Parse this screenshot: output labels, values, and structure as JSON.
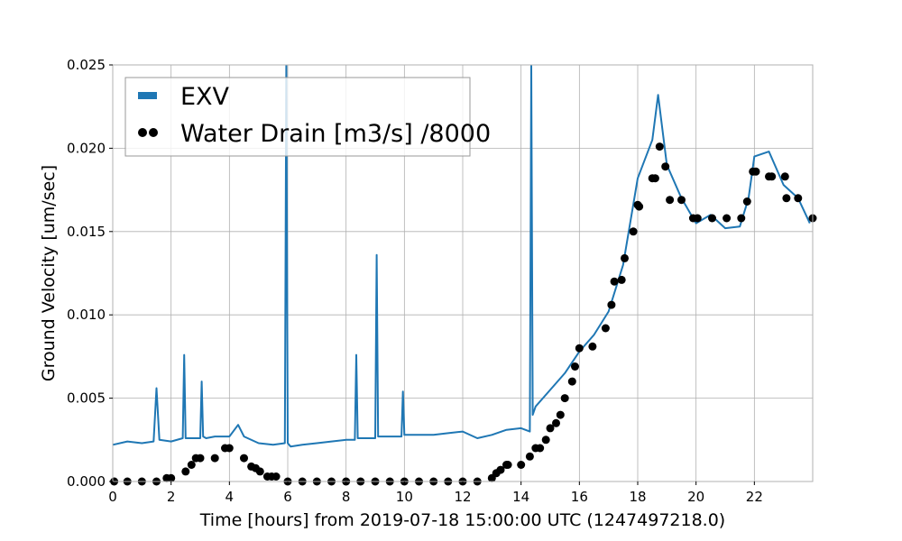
{
  "chart_data": {
    "type": "line",
    "xlabel": "Time [hours] from 2019-07-18 15:00:00 UTC (1247497218.0)",
    "ylabel": "Ground Velocity [um/sec]",
    "xlim": [
      0,
      24
    ],
    "ylim": [
      0,
      0.025
    ],
    "xticks": [
      0,
      2,
      4,
      6,
      8,
      10,
      12,
      14,
      16,
      18,
      20,
      22
    ],
    "yticks": [
      0.0,
      0.005,
      0.01,
      0.015,
      0.02,
      0.025
    ],
    "ytick_labels": [
      "0.000",
      "0.005",
      "0.010",
      "0.015",
      "0.020",
      "0.025"
    ],
    "grid": true,
    "legend_position": "top-left",
    "series": [
      {
        "name": "EXV",
        "style": "line",
        "color": "#1f77b4",
        "x": [
          0,
          0.5,
          1,
          1.4,
          1.5,
          1.6,
          2,
          2.4,
          2.45,
          2.5,
          3,
          3.05,
          3.1,
          3.2,
          3.5,
          4,
          4.3,
          4.5,
          5,
          5.5,
          5.9,
          5.95,
          6.0,
          6.1,
          6.5,
          7,
          7.5,
          8,
          8.3,
          8.35,
          8.4,
          8.5,
          9,
          9.05,
          9.1,
          9.5,
          9.9,
          9.95,
          10.0,
          10.5,
          11,
          11.5,
          12,
          12.5,
          13,
          13.5,
          14,
          14.3,
          14.35,
          14.4,
          14.5,
          15,
          15.5,
          16,
          16.5,
          17,
          17.5,
          18,
          18.5,
          18.7,
          19,
          19.5,
          20,
          20.5,
          21,
          21.5,
          21.8,
          22,
          22.5,
          23,
          23.5,
          23.9
        ],
        "y": [
          0.0022,
          0.0024,
          0.0023,
          0.0024,
          0.0056,
          0.0025,
          0.0024,
          0.0026,
          0.0076,
          0.0026,
          0.0026,
          0.006,
          0.0027,
          0.0026,
          0.0027,
          0.0027,
          0.0034,
          0.0027,
          0.0023,
          0.0022,
          0.0023,
          0.025,
          0.0023,
          0.0021,
          0.0022,
          0.0023,
          0.0024,
          0.0025,
          0.0025,
          0.0076,
          0.0026,
          0.0026,
          0.0026,
          0.0136,
          0.0027,
          0.0027,
          0.0027,
          0.0054,
          0.0028,
          0.0028,
          0.0028,
          0.0029,
          0.003,
          0.0026,
          0.0028,
          0.0031,
          0.0032,
          0.003,
          0.025,
          0.004,
          0.0045,
          0.0055,
          0.0065,
          0.0078,
          0.0088,
          0.0102,
          0.013,
          0.0182,
          0.0205,
          0.0232,
          0.019,
          0.017,
          0.0155,
          0.016,
          0.0152,
          0.0153,
          0.017,
          0.0195,
          0.0198,
          0.0178,
          0.017,
          0.0155
        ]
      },
      {
        "name": "Water Drain [m3/s] /8000",
        "style": "scatter",
        "color": "#000000",
        "x": [
          0.05,
          0.5,
          1.0,
          1.5,
          1.85,
          2.0,
          2.5,
          2.7,
          2.85,
          3.0,
          3.5,
          3.85,
          4.0,
          4.5,
          4.75,
          4.9,
          5.05,
          5.3,
          5.45,
          5.6,
          6.0,
          6.5,
          7.0,
          7.5,
          8.0,
          8.5,
          9.0,
          9.5,
          10.0,
          10.5,
          11.0,
          11.5,
          12.0,
          12.5,
          13.0,
          13.15,
          13.3,
          13.5,
          13.55,
          14.0,
          14.3,
          14.5,
          14.65,
          14.85,
          15.0,
          15.2,
          15.35,
          15.5,
          15.75,
          15.85,
          16.0,
          16.45,
          16.9,
          17.1,
          17.2,
          17.45,
          17.55,
          17.85,
          18.0,
          18.05,
          18.5,
          18.6,
          18.75,
          18.95,
          19.1,
          19.5,
          19.9,
          20.05,
          20.55,
          21.05,
          21.55,
          21.75,
          21.95,
          22.05,
          22.5,
          22.6,
          23.05,
          23.1,
          23.5,
          24.0
        ],
        "y": [
          0.0,
          0.0,
          0.0,
          0.0,
          0.0002,
          0.0002,
          0.0006,
          0.001,
          0.0014,
          0.0014,
          0.0014,
          0.002,
          0.002,
          0.0014,
          0.0009,
          0.0008,
          0.0006,
          0.0003,
          0.0003,
          0.0003,
          0.0,
          0.0,
          0.0,
          0.0,
          0.0,
          0.0,
          0.0,
          0.0,
          0.0,
          0.0,
          0.0,
          0.0,
          0.0,
          0.0,
          0.0002,
          0.0005,
          0.0007,
          0.001,
          0.001,
          0.001,
          0.0015,
          0.002,
          0.002,
          0.0025,
          0.0032,
          0.0035,
          0.004,
          0.005,
          0.006,
          0.0069,
          0.008,
          0.0081,
          0.0092,
          0.0106,
          0.012,
          0.0121,
          0.0134,
          0.015,
          0.0166,
          0.0165,
          0.0182,
          0.0182,
          0.0201,
          0.0189,
          0.0169,
          0.0169,
          0.0158,
          0.0158,
          0.0158,
          0.0158,
          0.0158,
          0.0168,
          0.0186,
          0.0186,
          0.0183,
          0.0183,
          0.0183,
          0.017,
          0.017,
          0.0158
        ]
      }
    ]
  }
}
